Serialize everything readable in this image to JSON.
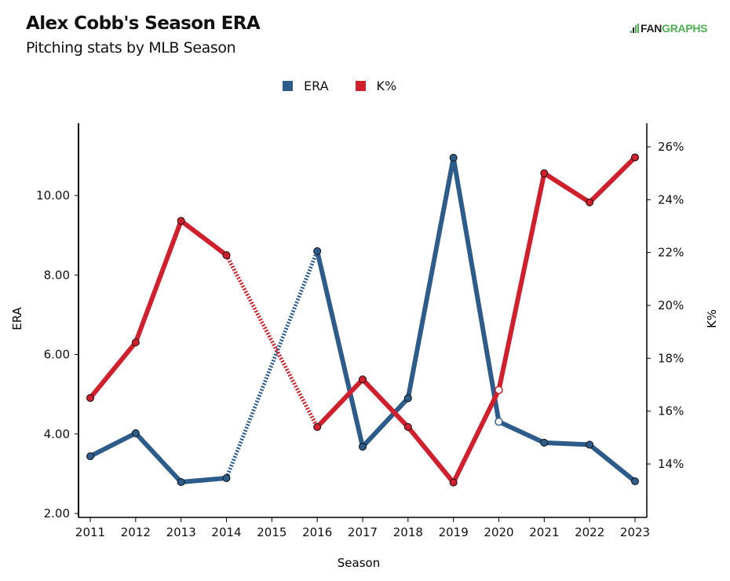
{
  "header": {
    "title": "Alex Cobb's Season ERA",
    "subtitle": "Pitching stats by MLB Season",
    "logo_left": "FAN",
    "logo_right": "GRAPHS",
    "logo_icon": "fangraphs-logo-icon"
  },
  "colors": {
    "era": "#2e5c8a",
    "k_pct": "#d0202e",
    "axis": "#000000",
    "brand_green": "#4caf50"
  },
  "chart_data": {
    "type": "line",
    "title": "Alex Cobb's Season ERA",
    "subtitle": "Pitching stats by MLB Season",
    "xlabel": "Season",
    "ylabel_left": "ERA",
    "ylabel_right": "K%",
    "x": [
      2011,
      2012,
      2013,
      2014,
      2015,
      2016,
      2017,
      2018,
      2019,
      2020,
      2021,
      2022,
      2023
    ],
    "x_tick_labels": [
      "2011",
      "2012",
      "2013",
      "2014",
      "2015",
      "2016",
      "2017",
      "2018",
      "2019",
      "2020",
      "2021",
      "2022",
      "2023"
    ],
    "ylim_left": [
      2.0,
      11.5
    ],
    "yticks_left": [
      2.0,
      4.0,
      6.0,
      8.0,
      10.0
    ],
    "ytick_labels_left": [
      "2.00",
      "4.00",
      "6.00",
      "8.00",
      "10.00"
    ],
    "ylim_right": [
      12.0,
      26.9
    ],
    "yticks_right": [
      14,
      16,
      18,
      20,
      22,
      24,
      26
    ],
    "ytick_labels_right": [
      "14%",
      "16%",
      "18%",
      "20%",
      "22%",
      "24%",
      "26%"
    ],
    "legend": [
      "ERA",
      "K%"
    ],
    "legend_position": "top-center",
    "grid": false,
    "series": [
      {
        "name": "ERA",
        "axis": "left",
        "values": [
          3.44,
          4.02,
          2.79,
          2.89,
          null,
          8.6,
          3.68,
          4.9,
          10.95,
          4.31,
          3.78,
          3.73,
          2.81
        ],
        "hollow_points": [
          2020
        ],
        "dashed_gap_segments": [
          [
            2014,
            2016
          ]
        ]
      },
      {
        "name": "K%",
        "axis": "right",
        "values": [
          16.5,
          18.6,
          23.2,
          21.9,
          null,
          15.4,
          17.2,
          15.4,
          13.3,
          16.8,
          25.0,
          23.9,
          25.6
        ],
        "hollow_points": [
          2020
        ],
        "dashed_gap_segments": [
          [
            2014,
            2016
          ]
        ]
      }
    ]
  }
}
